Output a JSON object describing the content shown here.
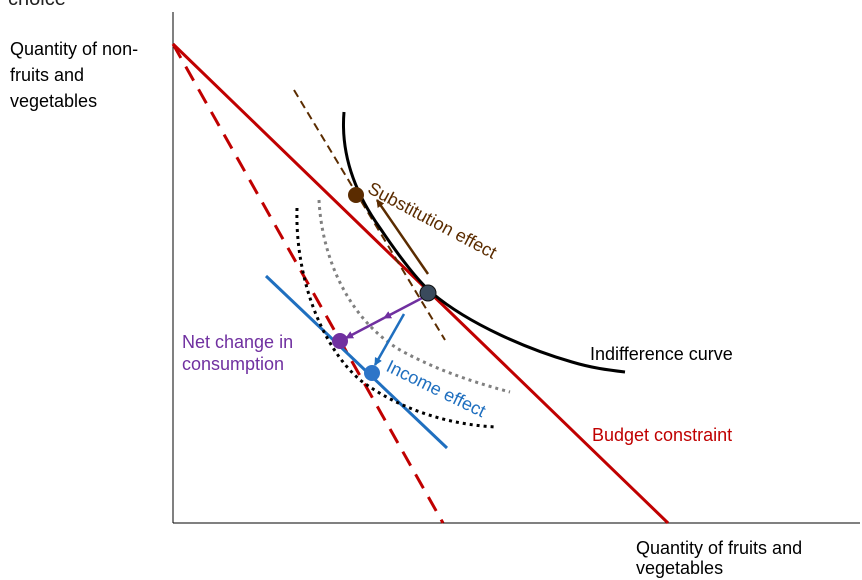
{
  "title_fragment": "choice",
  "axes": {
    "y_label": "Quantity of non-fruits and vegetables",
    "x_label": "Quantity of fruits and vegetables"
  },
  "labels": {
    "indifference_curve": "Indifference curve",
    "budget_constraint": "Budget constraint",
    "net_change": "Net change in consumption",
    "substitution_effect": "Substitution effect",
    "income_effect": "Income effect"
  },
  "colors": {
    "budget": "#c00000",
    "substitution": "#5b2c00",
    "income": "#1f6fbf",
    "net_change": "#7030a0",
    "indifference": "#000000",
    "intermediate_curve": "#808080",
    "original_point": "#3a4a5c"
  }
}
